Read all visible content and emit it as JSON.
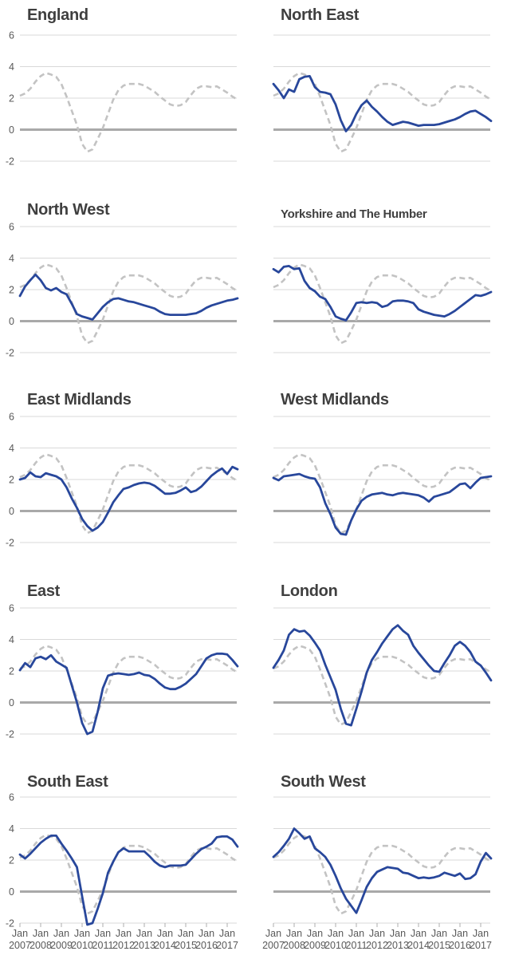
{
  "styles": {
    "background": "#ffffff",
    "title_color": "#3f3f3f",
    "tick_text_color": "#595959",
    "grid_color": "#d9d9d9",
    "zero_line_color": "#a9a9a9",
    "axis_tick_color": "#adadad",
    "england_line_color": "#c3c3c3",
    "region_line_color": "#28479b"
  },
  "chart_data": {
    "type": "line",
    "title": "",
    "x_unit": "year",
    "x_start": 2007,
    "x_step": 0.25,
    "n_points": 43,
    "y_ticks": [
      6,
      4,
      2,
      0,
      -2
    ],
    "ylim": [
      -2.6,
      6.4
    ],
    "x_tick_month": "Jan",
    "x_tick_years": [
      "2007",
      "2008",
      "2009",
      "2010",
      "2011",
      "2012",
      "2013",
      "2014",
      "2015",
      "2016",
      "2017"
    ],
    "grid": "horizontal-only",
    "legend": "none",
    "series": [
      {
        "name": "England",
        "role": "reference",
        "line": "dashed",
        "values": [
          2.15,
          2.3,
          2.6,
          3.05,
          3.4,
          3.6,
          3.5,
          3.35,
          2.9,
          2.1,
          1.2,
          0.3,
          -0.9,
          -1.4,
          -1.25,
          -0.6,
          0.1,
          1.0,
          1.9,
          2.5,
          2.8,
          2.9,
          2.9,
          2.9,
          2.8,
          2.6,
          2.4,
          2.1,
          1.85,
          1.6,
          1.5,
          1.55,
          1.75,
          2.2,
          2.6,
          2.75,
          2.75,
          2.7,
          2.75,
          2.55,
          2.35,
          2.1,
          1.9
        ]
      },
      {
        "name": "North East",
        "role": "region",
        "line": "solid",
        "values": [
          2.9,
          2.5,
          2.0,
          2.55,
          2.4,
          3.2,
          3.35,
          3.4,
          2.7,
          2.4,
          2.35,
          2.25,
          1.6,
          0.6,
          -0.1,
          0.3,
          1.0,
          1.55,
          1.85,
          1.45,
          1.15,
          0.8,
          0.5,
          0.3,
          0.4,
          0.5,
          0.45,
          0.35,
          0.25,
          0.3,
          0.3,
          0.3,
          0.35,
          0.45,
          0.55,
          0.65,
          0.8,
          1.0,
          1.15,
          1.2,
          1.0,
          0.8,
          0.55
        ]
      },
      {
        "name": "North West",
        "role": "region",
        "line": "solid",
        "values": [
          1.6,
          2.2,
          2.6,
          2.95,
          2.6,
          2.1,
          1.95,
          2.1,
          1.85,
          1.7,
          1.1,
          0.45,
          0.3,
          0.2,
          0.1,
          0.5,
          0.9,
          1.2,
          1.4,
          1.45,
          1.35,
          1.25,
          1.2,
          1.1,
          1.0,
          0.9,
          0.8,
          0.6,
          0.45,
          0.4,
          0.4,
          0.4,
          0.4,
          0.45,
          0.5,
          0.65,
          0.85,
          1.0,
          1.1,
          1.2,
          1.3,
          1.35,
          1.45
        ]
      },
      {
        "name": "Yorkshire and The Humber",
        "role": "region",
        "line": "solid",
        "values": [
          3.3,
          3.1,
          3.45,
          3.5,
          3.3,
          3.35,
          2.55,
          2.1,
          1.9,
          1.55,
          1.4,
          0.9,
          0.3,
          0.15,
          0.05,
          0.55,
          1.15,
          1.2,
          1.15,
          1.2,
          1.15,
          0.9,
          1.0,
          1.25,
          1.3,
          1.3,
          1.25,
          1.15,
          0.75,
          0.6,
          0.5,
          0.4,
          0.35,
          0.3,
          0.45,
          0.65,
          0.9,
          1.15,
          1.4,
          1.65,
          1.6,
          1.7,
          1.85
        ]
      },
      {
        "name": "East Midlands",
        "role": "region",
        "line": "solid",
        "values": [
          2.0,
          2.1,
          2.45,
          2.2,
          2.15,
          2.4,
          2.3,
          2.2,
          2.0,
          1.5,
          0.8,
          0.2,
          -0.5,
          -0.95,
          -1.25,
          -1.05,
          -0.7,
          -0.1,
          0.55,
          1.0,
          1.4,
          1.5,
          1.65,
          1.75,
          1.8,
          1.75,
          1.6,
          1.35,
          1.1,
          1.1,
          1.15,
          1.3,
          1.5,
          1.2,
          1.3,
          1.55,
          1.9,
          2.25,
          2.5,
          2.7,
          2.35,
          2.8,
          2.65
        ]
      },
      {
        "name": "West Midlands",
        "role": "region",
        "line": "solid",
        "values": [
          2.1,
          1.95,
          2.2,
          2.25,
          2.3,
          2.35,
          2.2,
          2.1,
          2.05,
          1.5,
          0.5,
          -0.2,
          -1.05,
          -1.45,
          -1.5,
          -0.6,
          0.1,
          0.65,
          0.9,
          1.05,
          1.1,
          1.15,
          1.05,
          1.0,
          1.1,
          1.15,
          1.1,
          1.05,
          1.0,
          0.85,
          0.6,
          0.9,
          1.0,
          1.1,
          1.2,
          1.45,
          1.7,
          1.75,
          1.45,
          1.8,
          2.1,
          2.15,
          2.2
        ]
      },
      {
        "name": "East",
        "role": "region",
        "line": "solid",
        "values": [
          2.05,
          2.5,
          2.25,
          2.8,
          2.9,
          2.75,
          3.0,
          2.6,
          2.4,
          2.2,
          1.1,
          0.0,
          -1.3,
          -2.0,
          -1.85,
          -0.6,
          0.9,
          1.7,
          1.8,
          1.85,
          1.8,
          1.75,
          1.8,
          1.9,
          1.75,
          1.7,
          1.5,
          1.2,
          0.95,
          0.85,
          0.85,
          1.0,
          1.2,
          1.5,
          1.8,
          2.3,
          2.8,
          3.0,
          3.1,
          3.1,
          3.05,
          2.7,
          2.3
        ]
      },
      {
        "name": "London",
        "role": "region",
        "line": "solid",
        "values": [
          2.2,
          2.7,
          3.3,
          4.3,
          4.65,
          4.5,
          4.55,
          4.25,
          3.8,
          3.3,
          2.4,
          1.6,
          0.8,
          -0.4,
          -1.35,
          -1.45,
          -0.4,
          0.7,
          1.9,
          2.7,
          3.2,
          3.75,
          4.2,
          4.65,
          4.9,
          4.55,
          4.3,
          3.6,
          3.15,
          2.75,
          2.35,
          2.0,
          1.95,
          2.5,
          3.0,
          3.6,
          3.85,
          3.6,
          3.2,
          2.6,
          2.35,
          1.9,
          1.4
        ]
      },
      {
        "name": "South East",
        "role": "region",
        "line": "solid",
        "values": [
          2.35,
          2.1,
          2.4,
          2.75,
          3.1,
          3.35,
          3.55,
          3.55,
          3.05,
          2.6,
          2.1,
          1.55,
          -0.3,
          -2.1,
          -2.0,
          -1.1,
          -0.1,
          1.2,
          1.9,
          2.5,
          2.75,
          2.55,
          2.55,
          2.55,
          2.55,
          2.25,
          1.9,
          1.65,
          1.55,
          1.65,
          1.65,
          1.65,
          1.7,
          2.05,
          2.4,
          2.7,
          2.85,
          3.05,
          3.45,
          3.5,
          3.5,
          3.3,
          2.85
        ]
      },
      {
        "name": "South West",
        "role": "region",
        "line": "solid",
        "values": [
          2.2,
          2.5,
          2.9,
          3.35,
          4.0,
          3.7,
          3.35,
          3.5,
          2.75,
          2.5,
          2.2,
          1.7,
          1.0,
          0.2,
          -0.45,
          -0.9,
          -1.35,
          -0.55,
          0.3,
          0.85,
          1.25,
          1.4,
          1.55,
          1.5,
          1.45,
          1.2,
          1.15,
          1.0,
          0.85,
          0.9,
          0.85,
          0.9,
          1.0,
          1.2,
          1.1,
          1.0,
          1.15,
          0.8,
          0.85,
          1.1,
          1.9,
          2.45,
          2.1
        ]
      }
    ]
  },
  "charts": [
    {
      "title": "England",
      "region_series": null,
      "show_y_axis": true,
      "show_x_axis": false
    },
    {
      "title": "North East",
      "region_series": "North East",
      "show_y_axis": false,
      "show_x_axis": false
    },
    {
      "title": "North West",
      "region_series": "North West",
      "show_y_axis": true,
      "show_x_axis": false
    },
    {
      "title": "Yorkshire and The Humber",
      "region_series": "Yorkshire and The Humber",
      "show_y_axis": false,
      "show_x_axis": false
    },
    {
      "title": "East Midlands",
      "region_series": "East Midlands",
      "show_y_axis": true,
      "show_x_axis": false
    },
    {
      "title": "West Midlands",
      "region_series": "West Midlands",
      "show_y_axis": false,
      "show_x_axis": false
    },
    {
      "title": "East",
      "region_series": "East",
      "show_y_axis": true,
      "show_x_axis": false
    },
    {
      "title": "London",
      "region_series": "London",
      "show_y_axis": false,
      "show_x_axis": false
    },
    {
      "title": "South East",
      "region_series": "South East",
      "show_y_axis": true,
      "show_x_axis": true
    },
    {
      "title": "South West",
      "region_series": "South West",
      "show_y_axis": false,
      "show_x_axis": true
    }
  ]
}
